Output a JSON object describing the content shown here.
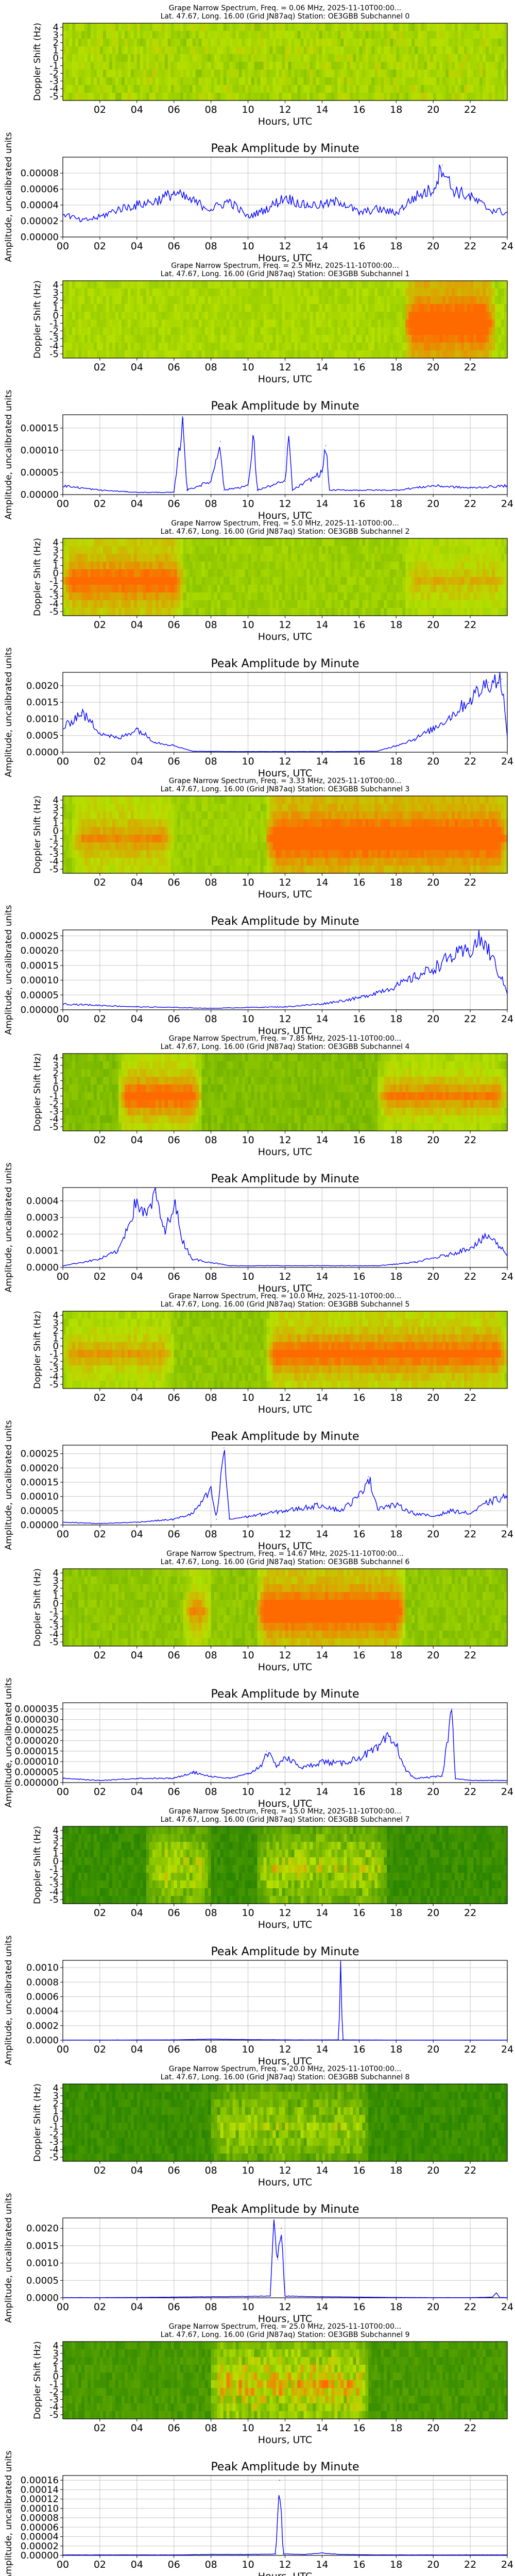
{
  "page": {
    "background": "#ffffff"
  },
  "colors": {
    "line": "#0000ff",
    "spectro_low": "#1a7a00",
    "spectro_mid": "#b5e000",
    "spectro_high": "#ff6a00",
    "grid": "#c8c8c8"
  },
  "common": {
    "peak_title": "Peak Amplitude by Minute",
    "x_label": "Hours, UTC",
    "spectro_y_label": "Doppler Shift (Hz)",
    "line_y_label": "Amplitude, uncalibrated units",
    "spectro_x_ticks": [
      "02",
      "04",
      "06",
      "08",
      "10",
      "12",
      "14",
      "16",
      "18",
      "20",
      "22"
    ],
    "line_x_ticks": [
      "00",
      "02",
      "04",
      "06",
      "08",
      "10",
      "12",
      "14",
      "16",
      "18",
      "20",
      "22",
      "24"
    ],
    "spectro_y_ticks": [
      "4",
      "3",
      "2",
      "1",
      "0",
      "-1",
      "-2",
      "-3",
      "-4",
      "-5"
    ]
  },
  "channels": [
    {
      "title_line1": "Grape Narrow Spectrum, Freq. = 0.06 MHz, 2025-11-10T00:00...",
      "title_line2": "Lat.  47.67, Long.  16.00 (Grid JN87aq) Station: OE3GBB Subchannel 0",
      "spectrum": {
        "base": 0.55,
        "style": "noise",
        "features": [
          {
            "start": 0,
            "end": 24,
            "intensity": 0.15
          }
        ]
      },
      "y_ticks": [
        "0.00000",
        "0.00002",
        "0.00004",
        "0.00006",
        "0.00008"
      ],
      "ylim": [
        0,
        0.0001
      ],
      "points": [
        [
          0,
          3e-05
        ],
        [
          1,
          2e-05
        ],
        [
          2,
          2.5e-05
        ],
        [
          3,
          3.5e-05
        ],
        [
          4,
          4e-05
        ],
        [
          5,
          4.5e-05
        ],
        [
          6,
          5.5e-05
        ],
        [
          7,
          4.5e-05
        ],
        [
          8,
          3.5e-05
        ],
        [
          9,
          4.5e-05
        ],
        [
          10,
          2.5e-05
        ],
        [
          11,
          3.5e-05
        ],
        [
          12,
          5e-05
        ],
        [
          13,
          4e-05
        ],
        [
          14,
          4e-05
        ],
        [
          15,
          4.5e-05
        ],
        [
          16,
          3e-05
        ],
        [
          17,
          3.5e-05
        ],
        [
          18,
          3e-05
        ],
        [
          19,
          5e-05
        ],
        [
          20,
          6e-05
        ],
        [
          20.5,
          9e-05
        ],
        [
          21,
          6e-05
        ],
        [
          22,
          5e-05
        ],
        [
          23,
          3.5e-05
        ],
        [
          24,
          3e-05
        ]
      ]
    },
    {
      "title_line1": "Grape Narrow Spectrum, Freq. = 2.5 MHz, 2025-11-10T00:00...",
      "title_line2": "Lat.  47.67, Long.  16.00 (Grid JN87aq) Station: OE3GBB Subchannel 1",
      "spectrum": {
        "base": 0.55,
        "style": "band",
        "features": [
          {
            "start": 18.5,
            "end": 23.3,
            "intensity": 0.9
          }
        ]
      },
      "y_ticks": [
        "0.00000",
        "0.00005",
        "0.00010",
        "0.00015"
      ],
      "ylim": [
        0,
        0.00018
      ],
      "points": [
        [
          0,
          2e-05
        ],
        [
          2,
          1e-05
        ],
        [
          4,
          5e-06
        ],
        [
          6,
          5e-06
        ],
        [
          6.5,
          0.00017
        ],
        [
          6.7,
          1e-05
        ],
        [
          8,
          3e-05
        ],
        [
          8.5,
          0.00012
        ],
        [
          8.7,
          1e-05
        ],
        [
          10,
          2e-05
        ],
        [
          10.3,
          0.00013
        ],
        [
          10.5,
          1e-05
        ],
        [
          12,
          3e-05
        ],
        [
          12.2,
          0.00013
        ],
        [
          12.4,
          1e-05
        ],
        [
          14,
          5e-05
        ],
        [
          14.2,
          0.00011
        ],
        [
          14.4,
          1e-05
        ],
        [
          16,
          1e-05
        ],
        [
          18,
          1e-05
        ],
        [
          20,
          2e-05
        ],
        [
          22,
          1.5e-05
        ],
        [
          24,
          2e-05
        ]
      ]
    },
    {
      "title_line1": "Grape Narrow Spectrum, Freq. = 5.0 MHz, 2025-11-10T00:00...",
      "title_line2": "Lat.  47.67, Long.  16.00 (Grid JN87aq) Station: OE3GBB Subchannel 2",
      "spectrum": {
        "base": 0.5,
        "style": "band",
        "features": [
          {
            "start": 0,
            "end": 6.5,
            "intensity": 0.7
          },
          {
            "start": 18.5,
            "end": 24,
            "intensity": 0.3
          }
        ]
      },
      "y_ticks": [
        "0.0000",
        "0.0005",
        "0.0010",
        "0.0015",
        "0.0020"
      ],
      "ylim": [
        0,
        0.0024
      ],
      "points": [
        [
          0,
          0.0007
        ],
        [
          1,
          0.0012
        ],
        [
          2,
          0.0006
        ],
        [
          3,
          0.0004
        ],
        [
          4,
          0.0007
        ],
        [
          5,
          0.0003
        ],
        [
          6,
          0.0002
        ],
        [
          7,
          3e-05
        ],
        [
          9,
          2e-05
        ],
        [
          11,
          2e-05
        ],
        [
          13,
          2e-05
        ],
        [
          15,
          2e-05
        ],
        [
          17,
          3e-05
        ],
        [
          18,
          0.0002
        ],
        [
          19,
          0.0004
        ],
        [
          20,
          0.0007
        ],
        [
          21,
          0.0011
        ],
        [
          22,
          0.0016
        ],
        [
          23,
          0.0021
        ],
        [
          23.7,
          0.0022
        ],
        [
          24,
          0.0004
        ]
      ]
    },
    {
      "title_line1": "Grape Narrow Spectrum, Freq. = 3.33 MHz, 2025-11-10T00:00...",
      "title_line2": "Lat.  47.67, Long.  16.00 (Grid JN87aq) Station: OE3GBB Subchannel 3",
      "spectrum": {
        "base": 0.5,
        "style": "band",
        "features": [
          {
            "start": 0.5,
            "end": 6,
            "intensity": 0.45
          },
          {
            "start": 11,
            "end": 24,
            "intensity": 0.95
          }
        ]
      },
      "y_ticks": [
        "0.00000",
        "0.00005",
        "0.00010",
        "0.00015",
        "0.00020",
        "0.00025"
      ],
      "ylim": [
        0,
        0.00027
      ],
      "points": [
        [
          0,
          2e-05
        ],
        [
          2,
          1.5e-05
        ],
        [
          4,
          1e-05
        ],
        [
          6,
          8e-06
        ],
        [
          8,
          5e-06
        ],
        [
          10,
          8e-06
        ],
        [
          12,
          1e-05
        ],
        [
          14,
          2e-05
        ],
        [
          16,
          4e-05
        ],
        [
          17,
          6e-05
        ],
        [
          18,
          8e-05
        ],
        [
          19,
          0.00011
        ],
        [
          20,
          0.00014
        ],
        [
          21,
          0.00018
        ],
        [
          22,
          0.0002
        ],
        [
          22.5,
          0.00024
        ],
        [
          23,
          0.0002
        ],
        [
          24,
          6e-05
        ]
      ]
    },
    {
      "title_line1": "Grape Narrow Spectrum, Freq. = 7.85 MHz, 2025-11-10T00:00...",
      "title_line2": "Lat.  47.67, Long.  16.00 (Grid JN87aq) Station: OE3GBB Subchannel 4",
      "spectrum": {
        "base": 0.4,
        "style": "band",
        "features": [
          {
            "start": 3,
            "end": 7.5,
            "intensity": 0.85
          },
          {
            "start": 17,
            "end": 24,
            "intensity": 0.65
          }
        ]
      },
      "y_ticks": [
        "0.0000",
        "0.0001",
        "0.0002",
        "0.0003",
        "0.0004"
      ],
      "ylim": [
        0,
        0.00048
      ],
      "points": [
        [
          0,
          1e-05
        ],
        [
          2,
          5e-05
        ],
        [
          3,
          0.0001
        ],
        [
          4,
          0.0004
        ],
        [
          4.5,
          0.0003
        ],
        [
          5,
          0.00045
        ],
        [
          5.5,
          0.0002
        ],
        [
          6,
          0.0004
        ],
        [
          6.5,
          0.00015
        ],
        [
          7,
          5e-05
        ],
        [
          9,
          1e-05
        ],
        [
          11,
          1e-05
        ],
        [
          13,
          1e-05
        ],
        [
          15,
          1e-05
        ],
        [
          17,
          1e-05
        ],
        [
          19,
          3e-05
        ],
        [
          21,
          8e-05
        ],
        [
          22,
          0.00012
        ],
        [
          23,
          0.00019
        ],
        [
          24,
          8e-05
        ]
      ]
    },
    {
      "title_line1": "Grape Narrow Spectrum, Freq. = 10.0 MHz, 2025-11-10T00:00...",
      "title_line2": "Lat.  47.67, Long.  16.00 (Grid JN87aq) Station: OE3GBB Subchannel 5",
      "spectrum": {
        "base": 0.45,
        "style": "band",
        "features": [
          {
            "start": 0,
            "end": 6,
            "intensity": 0.45
          },
          {
            "start": 11,
            "end": 24,
            "intensity": 0.75
          }
        ]
      },
      "y_ticks": [
        "0.00000",
        "0.00005",
        "0.00010",
        "0.00015",
        "0.00020",
        "0.00025"
      ],
      "ylim": [
        0,
        0.00028
      ],
      "points": [
        [
          0,
          1e-05
        ],
        [
          2,
          5e-06
        ],
        [
          4,
          1e-05
        ],
        [
          6,
          2e-05
        ],
        [
          7,
          4e-05
        ],
        [
          8,
          0.00012
        ],
        [
          8.3,
          2e-05
        ],
        [
          8.7,
          0.00027
        ],
        [
          9,
          2e-05
        ],
        [
          10,
          3e-05
        ],
        [
          12,
          5e-05
        ],
        [
          14,
          7e-05
        ],
        [
          15,
          5e-05
        ],
        [
          16,
          0.0001
        ],
        [
          16.5,
          0.00017
        ],
        [
          17,
          6e-05
        ],
        [
          18,
          7e-05
        ],
        [
          19,
          4e-05
        ],
        [
          20,
          3e-05
        ],
        [
          21,
          5e-05
        ],
        [
          22,
          4e-05
        ],
        [
          23,
          8e-05
        ],
        [
          24,
          0.0001
        ]
      ]
    },
    {
      "title_line1": "Grape Narrow Spectrum, Freq. = 14.67 MHz, 2025-11-10T00:00...",
      "title_line2": "Lat.  47.67, Long.  16.00 (Grid JN87aq) Station: OE3GBB Subchannel 6",
      "spectrum": {
        "base": 0.45,
        "style": "band",
        "features": [
          {
            "start": 6.5,
            "end": 8,
            "intensity": 0.55
          },
          {
            "start": 10.5,
            "end": 18.5,
            "intensity": 1.0
          }
        ]
      },
      "y_ticks": [
        "0.000000",
        "0.000005",
        "0.000010",
        "0.000015",
        "0.000020",
        "0.000025",
        "0.000030",
        "0.000035"
      ],
      "ylim": [
        0,
        3.8e-05
      ],
      "points": [
        [
          0,
          2e-06
        ],
        [
          2,
          1e-06
        ],
        [
          4,
          2e-06
        ],
        [
          6,
          2e-06
        ],
        [
          7,
          5e-06
        ],
        [
          8,
          3e-06
        ],
        [
          9,
          2e-06
        ],
        [
          10,
          4e-06
        ],
        [
          10.7,
          8e-06
        ],
        [
          11,
          1.5e-05
        ],
        [
          11.5,
          8e-06
        ],
        [
          12,
          1.2e-05
        ],
        [
          13,
          7e-06
        ],
        [
          14,
          1e-05
        ],
        [
          15,
          9e-06
        ],
        [
          16,
          1.2e-05
        ],
        [
          17,
          1.6e-05
        ],
        [
          17.5,
          2.1e-05
        ],
        [
          18,
          1.8e-05
        ],
        [
          18.5,
          6e-06
        ],
        [
          19,
          2e-06
        ],
        [
          20.5,
          3e-06
        ],
        [
          21,
          3.5e-05
        ],
        [
          21.2,
          2e-06
        ],
        [
          22,
          1e-06
        ],
        [
          24,
          1e-06
        ]
      ]
    },
    {
      "title_line1": "Grape Narrow Spectrum, Freq. = 15.0 MHz, 2025-11-10T00:00...",
      "title_line2": "Lat.  47.67, Long.  16.00 (Grid JN87aq) Station: OE3GBB Subchannel 7",
      "spectrum": {
        "base": 0.12,
        "style": "dark",
        "features": [
          {
            "start": 4.5,
            "end": 8,
            "intensity": 0.55
          },
          {
            "start": 10.5,
            "end": 17.5,
            "intensity": 0.55
          }
        ]
      },
      "y_ticks": [
        "0.0000",
        "0.0002",
        "0.0004",
        "0.0006",
        "0.0008",
        "0.0010"
      ],
      "ylim": [
        0,
        0.0011
      ],
      "points": [
        [
          0,
          2e-06
        ],
        [
          2,
          2e-06
        ],
        [
          4,
          3e-06
        ],
        [
          6,
          5e-06
        ],
        [
          8,
          1.5e-05
        ],
        [
          10,
          8e-06
        ],
        [
          12,
          5e-06
        ],
        [
          14,
          4e-06
        ],
        [
          14.9,
          5e-06
        ],
        [
          15,
          0.00105
        ],
        [
          15.1,
          5e-06
        ],
        [
          16,
          3e-06
        ],
        [
          18,
          2e-06
        ],
        [
          20,
          2e-06
        ],
        [
          22,
          2e-06
        ],
        [
          24,
          2e-06
        ]
      ]
    },
    {
      "title_line1": "Grape Narrow Spectrum, Freq. = 20.0 MHz, 2025-11-10T00:00...",
      "title_line2": "Lat.  47.67, Long.  16.00 (Grid JN87aq) Station: OE3GBB Subchannel 8",
      "spectrum": {
        "base": 0.12,
        "style": "dark",
        "features": [
          {
            "start": 8,
            "end": 16.5,
            "intensity": 0.45
          }
        ]
      },
      "y_ticks": [
        "0.0000",
        "0.0005",
        "0.0010",
        "0.0015",
        "0.0020"
      ],
      "ylim": [
        0,
        0.0023
      ],
      "points": [
        [
          0,
          5e-06
        ],
        [
          2,
          5e-06
        ],
        [
          4,
          1e-05
        ],
        [
          6,
          2e-05
        ],
        [
          8,
          3e-05
        ],
        [
          10,
          4e-05
        ],
        [
          11.2,
          5e-05
        ],
        [
          11.4,
          0.0022
        ],
        [
          11.6,
          0.0011
        ],
        [
          11.8,
          0.002
        ],
        [
          12,
          5e-05
        ],
        [
          14,
          3e-05
        ],
        [
          16,
          2e-05
        ],
        [
          18,
          1e-05
        ],
        [
          20,
          5e-06
        ],
        [
          22,
          5e-06
        ],
        [
          23.2,
          2e-05
        ],
        [
          23.4,
          0.00015
        ],
        [
          23.6,
          1e-05
        ],
        [
          24,
          5e-06
        ]
      ]
    },
    {
      "title_line1": "Grape Narrow Spectrum, Freq. = 25.0 MHz, 2025-11-10T00:00...",
      "title_line2": "Lat.  47.67, Long.  16.00 (Grid JN87aq) Station: OE3GBB Subchannel 9",
      "spectrum": {
        "base": 0.18,
        "style": "dark",
        "features": [
          {
            "start": 8,
            "end": 16.5,
            "intensity": 0.7
          }
        ]
      },
      "y_ticks": [
        "0.00000",
        "0.00002",
        "0.00004",
        "0.00006",
        "0.00008",
        "0.00010",
        "0.00012",
        "0.00014",
        "0.00016"
      ],
      "ylim": [
        0,
        0.00017
      ],
      "points": [
        [
          0,
          1e-06
        ],
        [
          2,
          1e-06
        ],
        [
          4,
          1e-06
        ],
        [
          6,
          1e-06
        ],
        [
          8,
          2e-06
        ],
        [
          10,
          2e-06
        ],
        [
          11.5,
          3e-06
        ],
        [
          11.7,
          0.00016
        ],
        [
          11.9,
          3e-06
        ],
        [
          13,
          2e-06
        ],
        [
          14,
          5e-06
        ],
        [
          15,
          2e-06
        ],
        [
          17,
          1e-06
        ],
        [
          20,
          1e-06
        ],
        [
          24,
          1e-06
        ]
      ]
    }
  ]
}
